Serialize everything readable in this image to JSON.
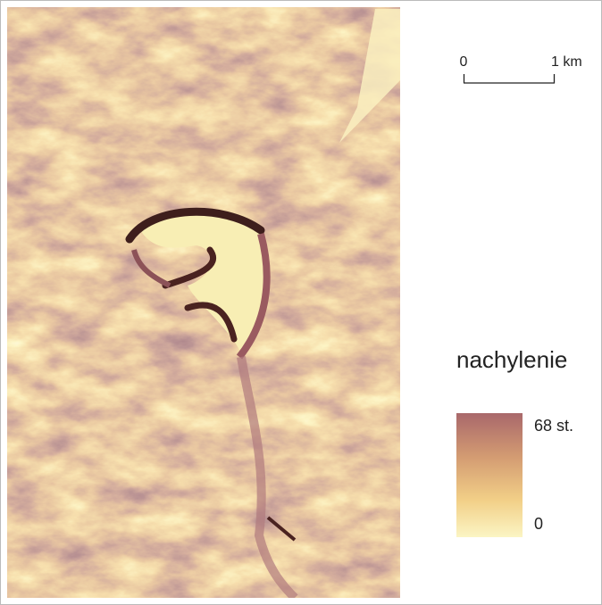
{
  "scale_bar": {
    "start_label": "0",
    "end_label": "1 km"
  },
  "legend": {
    "title": "nachylenie",
    "max_label": "68 st.",
    "min_label": "0"
  }
}
